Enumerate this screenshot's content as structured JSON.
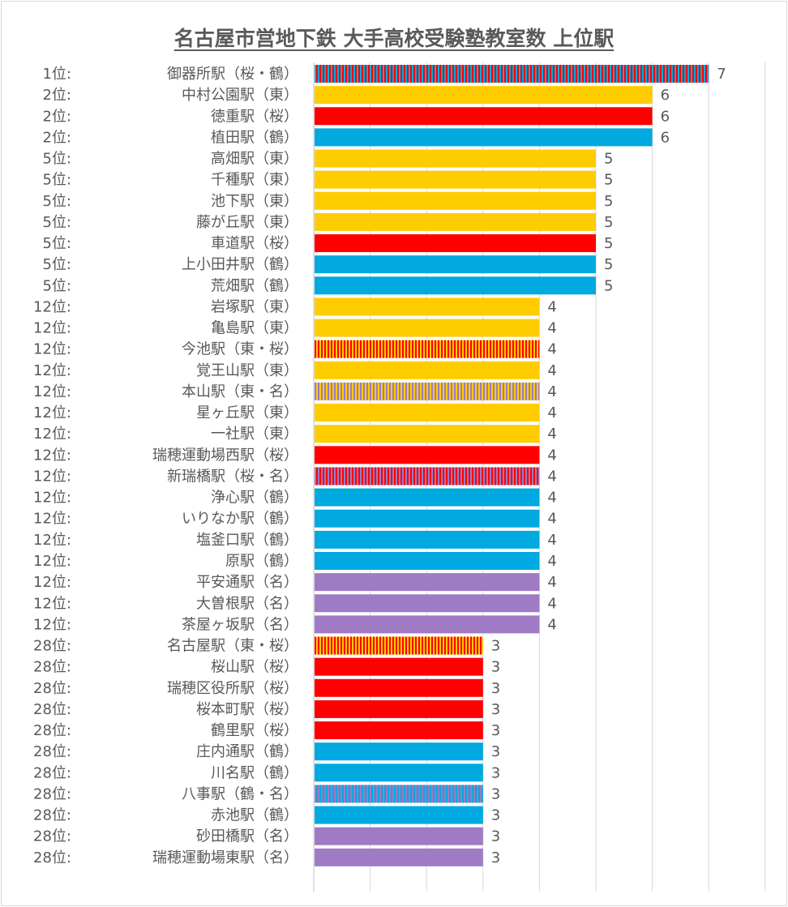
{
  "chart_data": {
    "type": "bar",
    "orientation": "horizontal",
    "title": "名古屋市営地下鉄 大手高校受験塾教室数 上位駅",
    "xlim": [
      0,
      8
    ],
    "grid": true,
    "line_colors": {
      "東": "#FFCC00",
      "桜": "#FF0000",
      "鶴": "#00A9DF",
      "名": "#9E7BC4"
    },
    "rows": [
      {
        "rank": "1位:",
        "station": "御器所駅（桜・鶴）",
        "lines": [
          "桜",
          "鶴"
        ],
        "value": 7
      },
      {
        "rank": "2位:",
        "station": "中村公園駅（東）",
        "lines": [
          "東"
        ],
        "value": 6
      },
      {
        "rank": "2位:",
        "station": "徳重駅（桜）",
        "lines": [
          "桜"
        ],
        "value": 6
      },
      {
        "rank": "2位:",
        "station": "植田駅（鶴）",
        "lines": [
          "鶴"
        ],
        "value": 6
      },
      {
        "rank": "5位:",
        "station": "高畑駅（東）",
        "lines": [
          "東"
        ],
        "value": 5
      },
      {
        "rank": "5位:",
        "station": "千種駅（東）",
        "lines": [
          "東"
        ],
        "value": 5
      },
      {
        "rank": "5位:",
        "station": "池下駅（東）",
        "lines": [
          "東"
        ],
        "value": 5
      },
      {
        "rank": "5位:",
        "station": "藤が丘駅（東）",
        "lines": [
          "東"
        ],
        "value": 5
      },
      {
        "rank": "5位:",
        "station": "車道駅（桜）",
        "lines": [
          "桜"
        ],
        "value": 5
      },
      {
        "rank": "5位:",
        "station": "上小田井駅（鶴）",
        "lines": [
          "鶴"
        ],
        "value": 5
      },
      {
        "rank": "5位:",
        "station": "荒畑駅（鶴）",
        "lines": [
          "鶴"
        ],
        "value": 5
      },
      {
        "rank": "12位:",
        "station": "岩塚駅（東）",
        "lines": [
          "東"
        ],
        "value": 4
      },
      {
        "rank": "12位:",
        "station": "亀島駅（東）",
        "lines": [
          "東"
        ],
        "value": 4
      },
      {
        "rank": "12位:",
        "station": "今池駅（東・桜）",
        "lines": [
          "東",
          "桜"
        ],
        "value": 4
      },
      {
        "rank": "12位:",
        "station": "覚王山駅（東）",
        "lines": [
          "東"
        ],
        "value": 4
      },
      {
        "rank": "12位:",
        "station": "本山駅（東・名）",
        "lines": [
          "東",
          "名"
        ],
        "value": 4
      },
      {
        "rank": "12位:",
        "station": "星ヶ丘駅（東）",
        "lines": [
          "東"
        ],
        "value": 4
      },
      {
        "rank": "12位:",
        "station": "一社駅（東）",
        "lines": [
          "東"
        ],
        "value": 4
      },
      {
        "rank": "12位:",
        "station": "瑞穂運動場西駅（桜）",
        "lines": [
          "桜"
        ],
        "value": 4
      },
      {
        "rank": "12位:",
        "station": "新瑞橋駅（桜・名）",
        "lines": [
          "桜",
          "名"
        ],
        "value": 4
      },
      {
        "rank": "12位:",
        "station": "浄心駅（鶴）",
        "lines": [
          "鶴"
        ],
        "value": 4
      },
      {
        "rank": "12位:",
        "station": "いりなか駅（鶴）",
        "lines": [
          "鶴"
        ],
        "value": 4
      },
      {
        "rank": "12位:",
        "station": "塩釜口駅（鶴）",
        "lines": [
          "鶴"
        ],
        "value": 4
      },
      {
        "rank": "12位:",
        "station": "原駅（鶴）",
        "lines": [
          "鶴"
        ],
        "value": 4
      },
      {
        "rank": "12位:",
        "station": "平安通駅（名）",
        "lines": [
          "名"
        ],
        "value": 4
      },
      {
        "rank": "12位:",
        "station": "大曽根駅（名）",
        "lines": [
          "名"
        ],
        "value": 4
      },
      {
        "rank": "12位:",
        "station": "茶屋ヶ坂駅（名）",
        "lines": [
          "名"
        ],
        "value": 4
      },
      {
        "rank": "28位:",
        "station": "名古屋駅（東・桜）",
        "lines": [
          "東",
          "桜"
        ],
        "value": 3
      },
      {
        "rank": "28位:",
        "station": "桜山駅（桜）",
        "lines": [
          "桜"
        ],
        "value": 3
      },
      {
        "rank": "28位:",
        "station": "瑞穂区役所駅（桜）",
        "lines": [
          "桜"
        ],
        "value": 3
      },
      {
        "rank": "28位:",
        "station": "桜本町駅（桜）",
        "lines": [
          "桜"
        ],
        "value": 3
      },
      {
        "rank": "28位:",
        "station": "鶴里駅（桜）",
        "lines": [
          "桜"
        ],
        "value": 3
      },
      {
        "rank": "28位:",
        "station": "庄内通駅（鶴）",
        "lines": [
          "鶴"
        ],
        "value": 3
      },
      {
        "rank": "28位:",
        "station": "川名駅（鶴）",
        "lines": [
          "鶴"
        ],
        "value": 3
      },
      {
        "rank": "28位:",
        "station": "八事駅（鶴・名）",
        "lines": [
          "鶴",
          "名"
        ],
        "value": 3
      },
      {
        "rank": "28位:",
        "station": "赤池駅（鶴）",
        "lines": [
          "鶴"
        ],
        "value": 3
      },
      {
        "rank": "28位:",
        "station": "砂田橋駅（名）",
        "lines": [
          "名"
        ],
        "value": 3
      },
      {
        "rank": "28位:",
        "station": "瑞穂運動場東駅（名）",
        "lines": [
          "名"
        ],
        "value": 3
      }
    ]
  }
}
